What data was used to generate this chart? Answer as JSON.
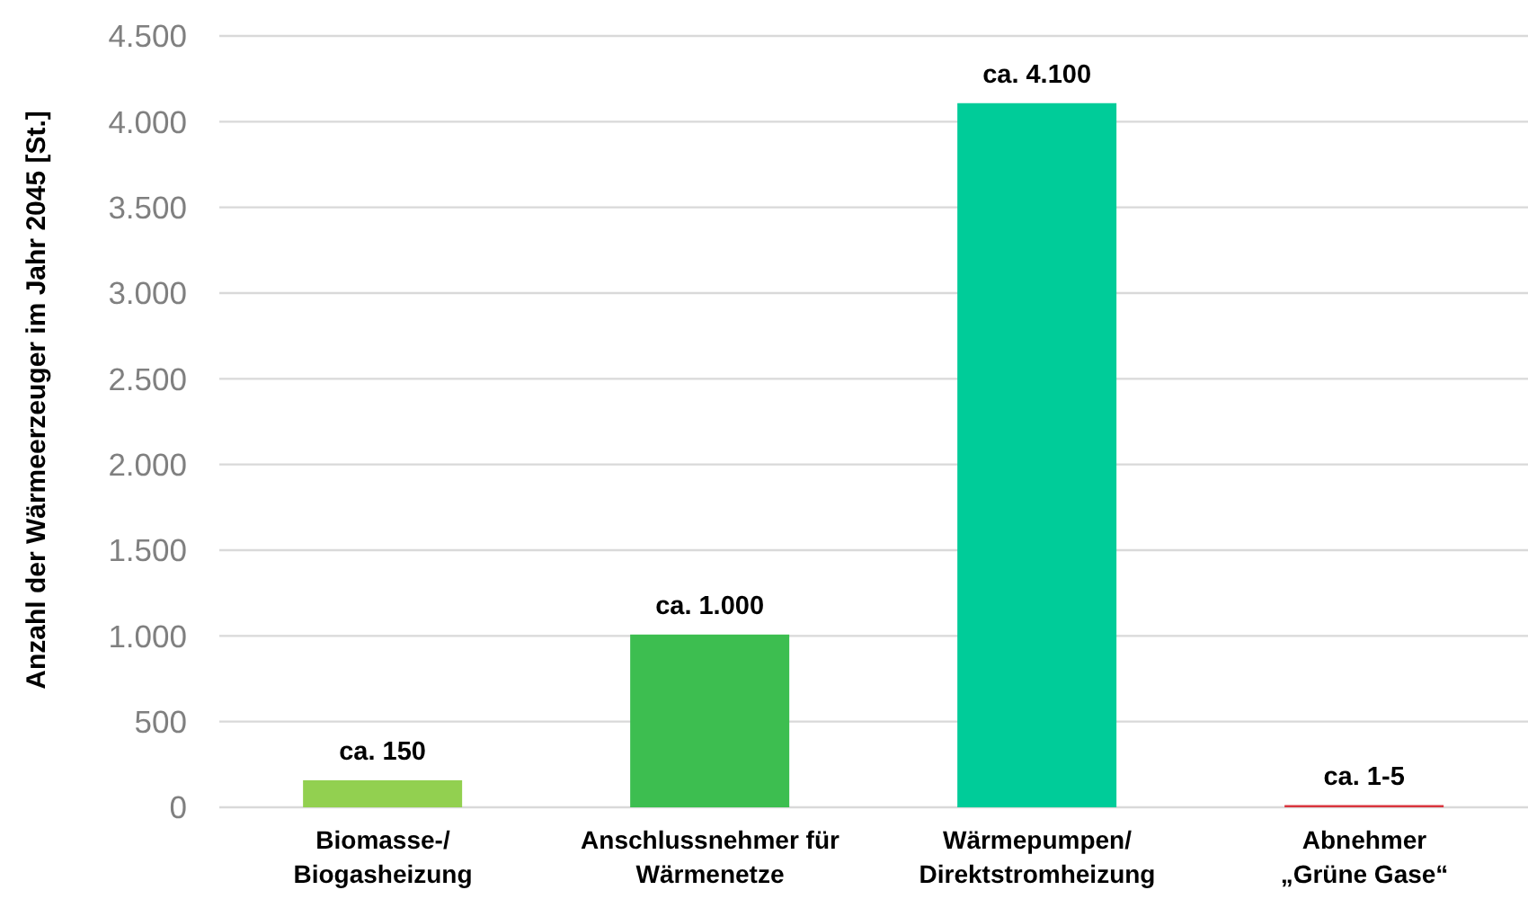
{
  "chart_data": {
    "type": "bar",
    "ylabel": "Anzahl der Wärmeerzeuger im Jahr 2045 [St.]",
    "categories": [
      "Biomasse-/\nBiogasheizung",
      "Anschlussnehmer für\nWärmenetze",
      "Wärmepumpen/\nDirektstromheizung",
      "Abnehmer\n„Grüne Gase“"
    ],
    "values": [
      150,
      1000,
      4100,
      5
    ],
    "colors": [
      "#92d050",
      "#3dbe50",
      "#00cc99",
      "#d9363e"
    ],
    "value_labels": [
      "ca. 150",
      "ca. 1.000",
      "ca. 4.100",
      "ca. 1-5"
    ],
    "ylim": [
      0,
      4500
    ],
    "yticks": [
      0,
      500,
      {
        "value": 1000,
        "label": "1.000"
      },
      {
        "value": 1500,
        "label": "1.500"
      },
      {
        "value": 2000,
        "label": "2.000"
      },
      {
        "value": 2500,
        "label": "2.500"
      },
      {
        "value": 3000,
        "label": "3.000"
      },
      {
        "value": 3500,
        "label": "3.500"
      },
      {
        "value": 4000,
        "label": "4.000"
      },
      {
        "value": 4500,
        "label": "4.500"
      }
    ],
    "grid": "y"
  }
}
